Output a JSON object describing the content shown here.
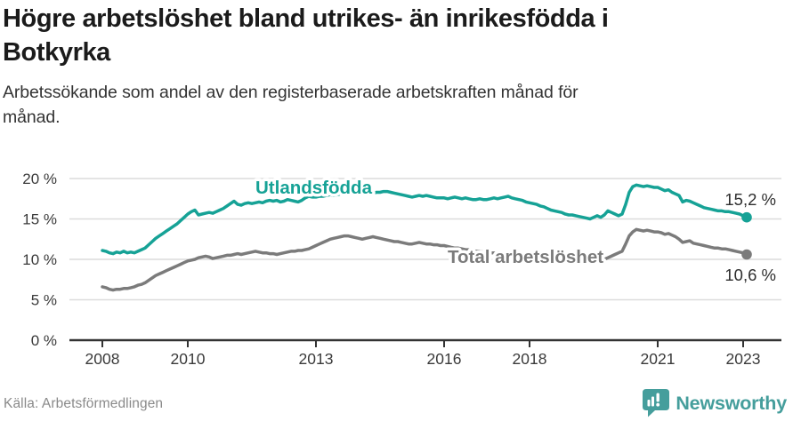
{
  "header": {
    "title_lines": [
      "Högre arbetslöshet bland utrikes- än inrikesfödda i",
      "Botkyrka"
    ],
    "subtitle_lines": [
      "Arbetssökande som andel av den registerbaserade arbetskraften månad för",
      "månad."
    ]
  },
  "footer": {
    "source": "Källa: Arbetsförmedlingen",
    "logo_text": "Newsworthy",
    "logo_color": "#459e9c"
  },
  "chart_data": {
    "type": "line",
    "title": "Högre arbetslöshet bland utrikes- än inrikesfödda i Botkyrka",
    "subtitle": "Arbetssökande som andel av den registerbaserade arbetskraften månad för månad.",
    "x_unit": "month",
    "x_start": "2008-01",
    "x_end": "2023-02",
    "ylim": [
      0,
      20
    ],
    "grid": "horizontal",
    "legend_position": "inline-labels",
    "yticks": [
      {
        "label": "0 %",
        "value": 0
      },
      {
        "label": "5 %",
        "value": 5
      },
      {
        "label": "10 %",
        "value": 10
      },
      {
        "label": "15 %",
        "value": 15
      },
      {
        "label": "20 %",
        "value": 20
      }
    ],
    "xticks": [
      {
        "label": "2008",
        "year": 2008
      },
      {
        "label": "2010",
        "year": 2010
      },
      {
        "label": "2013",
        "year": 2013
      },
      {
        "label": "2016",
        "year": 2016
      },
      {
        "label": "2018",
        "year": 2018
      },
      {
        "label": "2021",
        "year": 2021
      },
      {
        "label": "2023",
        "year": 2023
      }
    ],
    "series": [
      {
        "name": "Utlandsfödda",
        "color": "#16a296",
        "end_label": "15,2 %",
        "end_value": 15.2,
        "values": [
          11.1,
          11.0,
          10.8,
          10.7,
          10.9,
          10.8,
          11.0,
          10.8,
          10.9,
          10.8,
          11.0,
          11.2,
          11.4,
          11.8,
          12.2,
          12.6,
          12.9,
          13.2,
          13.5,
          13.8,
          14.1,
          14.4,
          14.8,
          15.2,
          15.6,
          15.9,
          16.1,
          15.5,
          15.6,
          15.7,
          15.8,
          15.7,
          15.9,
          16.1,
          16.3,
          16.6,
          16.9,
          17.2,
          16.8,
          16.7,
          16.9,
          17.0,
          16.9,
          17.0,
          17.1,
          17.0,
          17.2,
          17.3,
          17.2,
          17.3,
          17.1,
          17.2,
          17.4,
          17.3,
          17.2,
          17.1,
          17.3,
          17.6,
          17.8,
          17.7,
          17.7,
          17.8,
          17.8,
          17.9,
          18.0,
          17.9,
          18.0,
          18.1,
          18.0,
          18.1,
          18.1,
          18.2,
          18.1,
          18.2,
          18.2,
          18.3,
          18.2,
          18.3,
          18.3,
          18.4,
          18.4,
          18.3,
          18.2,
          18.1,
          18.0,
          17.9,
          17.8,
          17.7,
          17.8,
          17.9,
          17.8,
          17.9,
          17.8,
          17.7,
          17.6,
          17.6,
          17.6,
          17.5,
          17.6,
          17.7,
          17.6,
          17.5,
          17.6,
          17.5,
          17.4,
          17.4,
          17.5,
          17.4,
          17.4,
          17.5,
          17.6,
          17.5,
          17.6,
          17.7,
          17.8,
          17.6,
          17.5,
          17.4,
          17.3,
          17.1,
          17.0,
          16.9,
          16.8,
          16.6,
          16.5,
          16.3,
          16.1,
          16.0,
          15.9,
          15.8,
          15.6,
          15.5,
          15.5,
          15.4,
          15.3,
          15.2,
          15.1,
          15.0,
          15.2,
          15.4,
          15.2,
          15.5,
          16.0,
          15.8,
          15.6,
          15.4,
          15.6,
          16.8,
          18.3,
          19.0,
          19.2,
          19.1,
          19.0,
          19.1,
          19.0,
          18.9,
          18.9,
          18.7,
          18.5,
          18.6,
          18.3,
          18.1,
          17.9,
          17.1,
          17.3,
          17.2,
          17.0,
          16.8,
          16.6,
          16.4,
          16.3,
          16.2,
          16.1,
          16.0,
          16.0,
          15.9,
          15.9,
          15.8,
          15.7,
          15.6,
          15.4,
          15.2
        ]
      },
      {
        "name": "Total arbetslöshet",
        "color": "#7b7b7b",
        "end_label": "10,6 %",
        "end_value": 10.6,
        "values": [
          6.6,
          6.5,
          6.3,
          6.2,
          6.3,
          6.3,
          6.4,
          6.4,
          6.5,
          6.6,
          6.8,
          6.9,
          7.1,
          7.4,
          7.7,
          8.0,
          8.2,
          8.4,
          8.6,
          8.8,
          9.0,
          9.2,
          9.4,
          9.6,
          9.8,
          9.9,
          10.0,
          10.2,
          10.3,
          10.4,
          10.3,
          10.1,
          10.2,
          10.3,
          10.4,
          10.5,
          10.5,
          10.6,
          10.7,
          10.6,
          10.7,
          10.8,
          10.9,
          11.0,
          10.9,
          10.8,
          10.8,
          10.7,
          10.7,
          10.6,
          10.7,
          10.8,
          10.9,
          11.0,
          11.0,
          11.1,
          11.1,
          11.2,
          11.3,
          11.5,
          11.7,
          11.9,
          12.1,
          12.3,
          12.5,
          12.6,
          12.7,
          12.8,
          12.9,
          12.9,
          12.8,
          12.7,
          12.6,
          12.5,
          12.6,
          12.7,
          12.8,
          12.7,
          12.6,
          12.5,
          12.4,
          12.3,
          12.2,
          12.2,
          12.1,
          12.0,
          11.9,
          11.9,
          12.0,
          12.1,
          12.0,
          11.9,
          11.9,
          11.8,
          11.8,
          11.7,
          11.7,
          11.6,
          11.5,
          11.4,
          11.4,
          11.3,
          11.2,
          11.2,
          11.1,
          11.0,
          11.0,
          10.9,
          10.9,
          10.8,
          10.8,
          10.7,
          10.7,
          10.6,
          10.6,
          10.5,
          10.5,
          10.4,
          10.4,
          10.3,
          10.3,
          10.2,
          10.2,
          10.1,
          10.1,
          10.0,
          10.0,
          9.9,
          9.9,
          9.9,
          9.8,
          9.8,
          9.8,
          9.7,
          9.7,
          9.7,
          9.7,
          9.7,
          9.8,
          9.8,
          9.9,
          10.0,
          10.2,
          10.4,
          10.6,
          10.8,
          11.0,
          11.9,
          12.9,
          13.4,
          13.7,
          13.6,
          13.5,
          13.6,
          13.5,
          13.4,
          13.4,
          13.3,
          13.1,
          13.2,
          13.0,
          12.8,
          12.5,
          12.1,
          12.2,
          12.3,
          12.0,
          11.9,
          11.8,
          11.7,
          11.6,
          11.5,
          11.4,
          11.4,
          11.3,
          11.3,
          11.2,
          11.1,
          11.0,
          10.9,
          10.8,
          10.6
        ]
      }
    ]
  }
}
